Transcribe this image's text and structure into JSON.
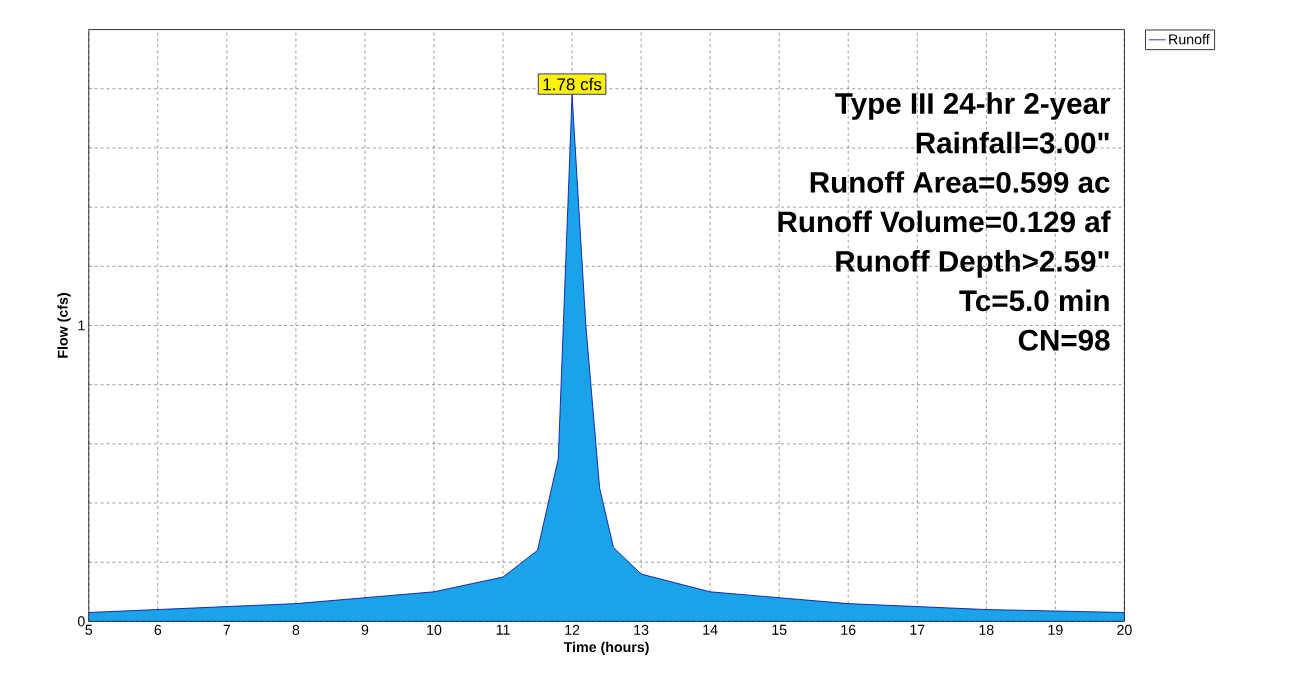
{
  "chart_data": {
    "type": "area",
    "xlabel": "Time  (hours)",
    "ylabel": "Flow  (cfs)",
    "x": [
      5,
      6,
      7,
      8,
      9,
      10,
      11,
      11.5,
      11.8,
      12.0,
      12.2,
      12.4,
      12.6,
      13,
      14,
      15,
      16,
      17,
      18,
      19,
      20
    ],
    "series": [
      {
        "name": "Runoff",
        "color": "#1aa3e8",
        "values": [
          0.03,
          0.04,
          0.05,
          0.06,
          0.08,
          0.1,
          0.15,
          0.24,
          0.55,
          1.78,
          1.0,
          0.45,
          0.25,
          0.16,
          0.1,
          0.08,
          0.06,
          0.05,
          0.04,
          0.035,
          0.03
        ]
      }
    ],
    "xlim": [
      5,
      20
    ],
    "ylim": [
      0,
      2
    ],
    "xticks": [
      5,
      6,
      7,
      8,
      9,
      10,
      11,
      12,
      13,
      14,
      15,
      16,
      17,
      18,
      19,
      20
    ],
    "yticks": [
      0,
      {
        "value": 0.2,
        "label": null
      },
      {
        "value": 0.4,
        "label": null
      },
      {
        "value": 0.6,
        "label": null
      },
      {
        "value": 0.8,
        "label": null
      },
      1,
      {
        "value": 1.2,
        "label": null
      },
      {
        "value": 1.4,
        "label": null
      },
      {
        "value": 1.6,
        "label": null
      },
      {
        "value": 1.8,
        "label": null
      }
    ],
    "annotations": [
      {
        "text": "1.78 cfs",
        "x": 12.0,
        "y": 1.78
      },
      "Type III 24-hr 2-year",
      "Rainfall=3.00\"",
      "Runoff Area=0.599 ac",
      "Runoff Volume=0.129 af",
      "Runoff Depth>2.59\"",
      "Tc=5.0 min",
      "CN=98"
    ],
    "grid": true,
    "legend": "top right"
  }
}
